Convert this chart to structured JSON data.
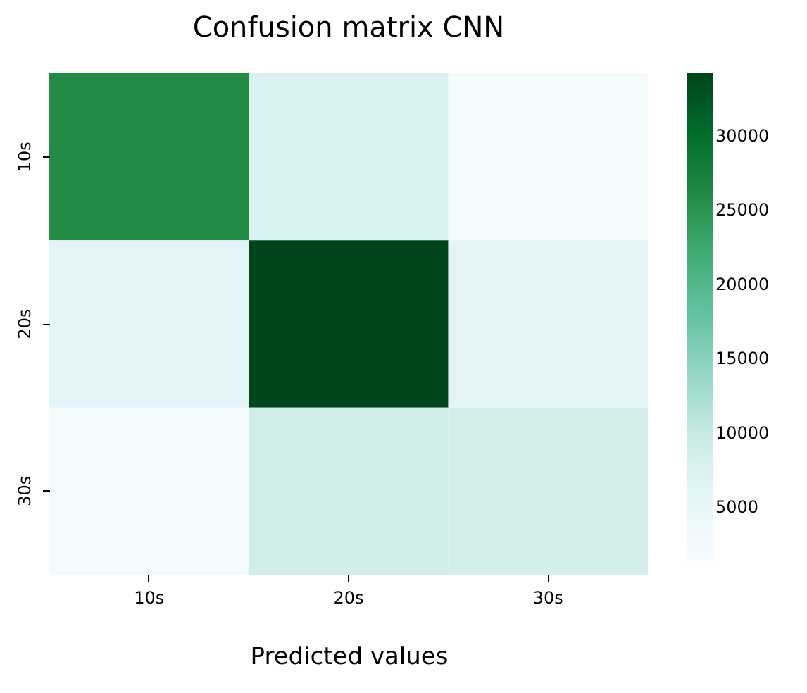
{
  "chart_data": {
    "type": "heatmap",
    "title": "Confusion matrix CNN",
    "xlabel": "Predicted values",
    "categories": [
      "10s",
      "20s",
      "30s"
    ],
    "y_categories": [
      "10s",
      "20s",
      "30s"
    ],
    "cells": [
      [
        26000,
        7500,
        2000
      ],
      [
        6000,
        34200,
        6000
      ],
      [
        2000,
        9000,
        8500
      ]
    ],
    "clim": [
      1400,
      34200
    ],
    "cticks": [
      5000,
      10000,
      15000,
      20000,
      25000,
      30000
    ]
  }
}
